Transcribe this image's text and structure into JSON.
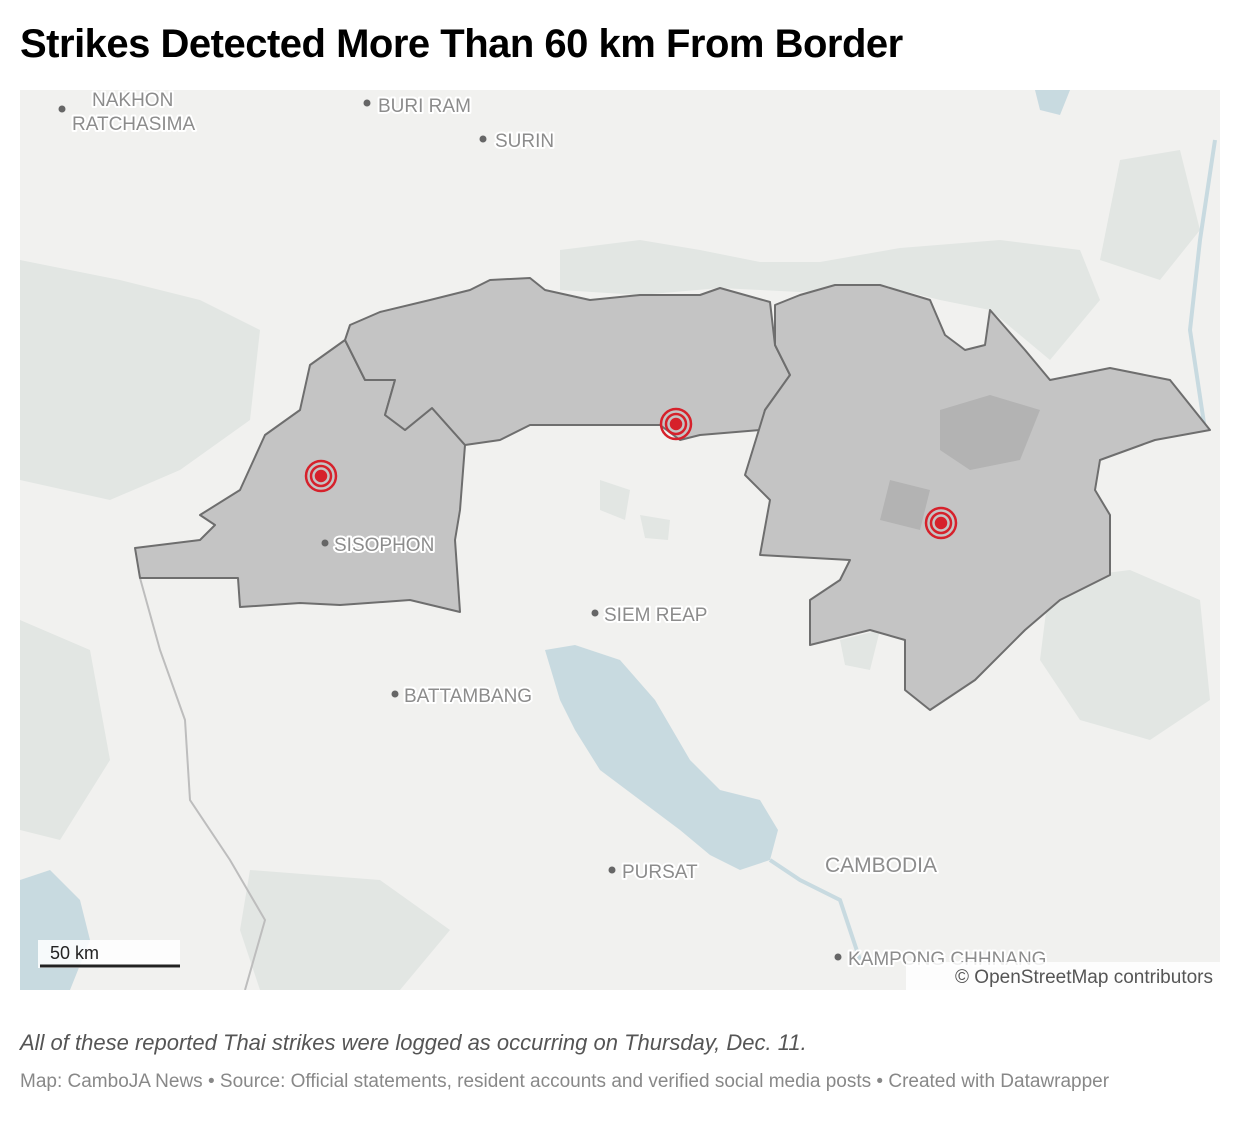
{
  "header": {
    "title": "Strikes Detected More Than 60 km From Border"
  },
  "map": {
    "places": [
      "NAKHON",
      "RATCHASIMA",
      "BURI RAM",
      "SURIN",
      "SISOPHON",
      "SIEM REAP",
      "BATTAMBANG",
      "PURSAT",
      "CAMBODIA",
      "KAMPONG CHHNANG"
    ],
    "scale": "50 km",
    "attribution": "© OpenStreetMap contributors"
  },
  "footer": {
    "note": "All of these reported Thai strikes were logged as occurring on Thursday, Dec. 11.",
    "source": "Map: CamboJA News • Source: Official statements, resident accounts and verified social media posts • Created with Datawrapper"
  }
}
